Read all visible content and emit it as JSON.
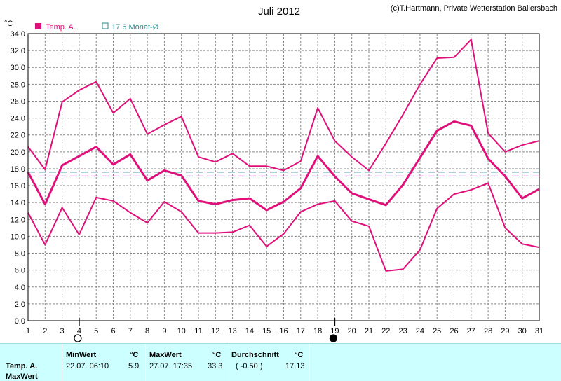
{
  "chart_data": {
    "type": "line",
    "title": "Juli 2012",
    "credit": "(c)T.Hartmann, Private Wetterstation Ballersbach",
    "ylabel": "°C",
    "xlabel": "",
    "ylim": [
      0,
      34
    ],
    "yticks": [
      "0.0",
      "2.0",
      "4.0",
      "6.0",
      "8.0",
      "10.0",
      "12.0",
      "14.0",
      "16.0",
      "18.0",
      "20.0",
      "22.0",
      "24.0",
      "26.0",
      "28.0",
      "30.0",
      "32.0",
      "34.0"
    ],
    "xlim": [
      1,
      31
    ],
    "x": [
      1,
      2,
      3,
      4,
      5,
      6,
      7,
      8,
      9,
      10,
      11,
      12,
      13,
      14,
      15,
      16,
      17,
      18,
      19,
      20,
      21,
      22,
      23,
      24,
      25,
      26,
      27,
      28,
      29,
      30,
      31
    ],
    "grid": true,
    "legend": [
      {
        "label": "Temp. A.",
        "color": "#e0107a",
        "symbol": "filled-square"
      },
      {
        "label": "17.6 Monat-Ø",
        "color": "#2a8a8a",
        "symbol": "open-square"
      }
    ],
    "series": [
      {
        "role": "max",
        "color": "#e0107a",
        "values": [
          20.6,
          17.9,
          25.9,
          27.3,
          28.3,
          24.6,
          26.3,
          22.1,
          23.2,
          24.2,
          19.4,
          18.8,
          19.8,
          18.3,
          18.3,
          17.8,
          18.9,
          25.2,
          21.3,
          19.4,
          17.8,
          21.0,
          24.4,
          28.0,
          31.1,
          31.2,
          33.3,
          22.2,
          20.0,
          20.8,
          21.3
        ]
      },
      {
        "role": "mean",
        "color": "#e0107a",
        "values": [
          17.6,
          13.8,
          18.4,
          19.5,
          20.6,
          18.5,
          19.7,
          16.6,
          17.8,
          17.2,
          14.2,
          13.8,
          14.3,
          14.5,
          13.1,
          14.1,
          15.7,
          19.5,
          17.1,
          15.1,
          14.4,
          13.7,
          16.1,
          19.3,
          22.5,
          23.6,
          23.1,
          19.2,
          17.1,
          14.5,
          15.6
        ]
      },
      {
        "role": "min",
        "color": "#e0107a",
        "values": [
          12.8,
          9.0,
          13.4,
          10.2,
          14.6,
          14.2,
          12.8,
          11.6,
          14.1,
          12.9,
          10.4,
          10.4,
          10.5,
          11.3,
          8.8,
          10.3,
          12.9,
          13.8,
          14.2,
          11.8,
          11.2,
          5.9,
          6.1,
          8.4,
          13.3,
          15.0,
          15.5,
          16.3,
          11.0,
          9.1,
          8.7
        ]
      }
    ],
    "reference_lines": [
      {
        "value": 17.6,
        "color": "#2a8a8a",
        "style": "dashed"
      },
      {
        "value": 17.13,
        "color": "#e0107a",
        "style": "dashed"
      }
    ],
    "moon_phases": [
      {
        "x": 4,
        "phase": "full"
      },
      {
        "x": 19,
        "phase": "new"
      }
    ]
  },
  "stats": {
    "row_label_1": "Temp. A.",
    "row_label_2": "MaxWert",
    "min_label": "MinWert",
    "min_unit": "°C",
    "min_time": "22.07.  06:10",
    "min_value": "5.9",
    "max_label": "MaxWert",
    "max_unit": "°C",
    "max_time": "27.07.  17:35",
    "max_value": "33.3",
    "avg_label": "Durchschnitt",
    "avg_unit": "°C",
    "avg_dev": "( -0.50 )",
    "avg_value": "17.13"
  }
}
